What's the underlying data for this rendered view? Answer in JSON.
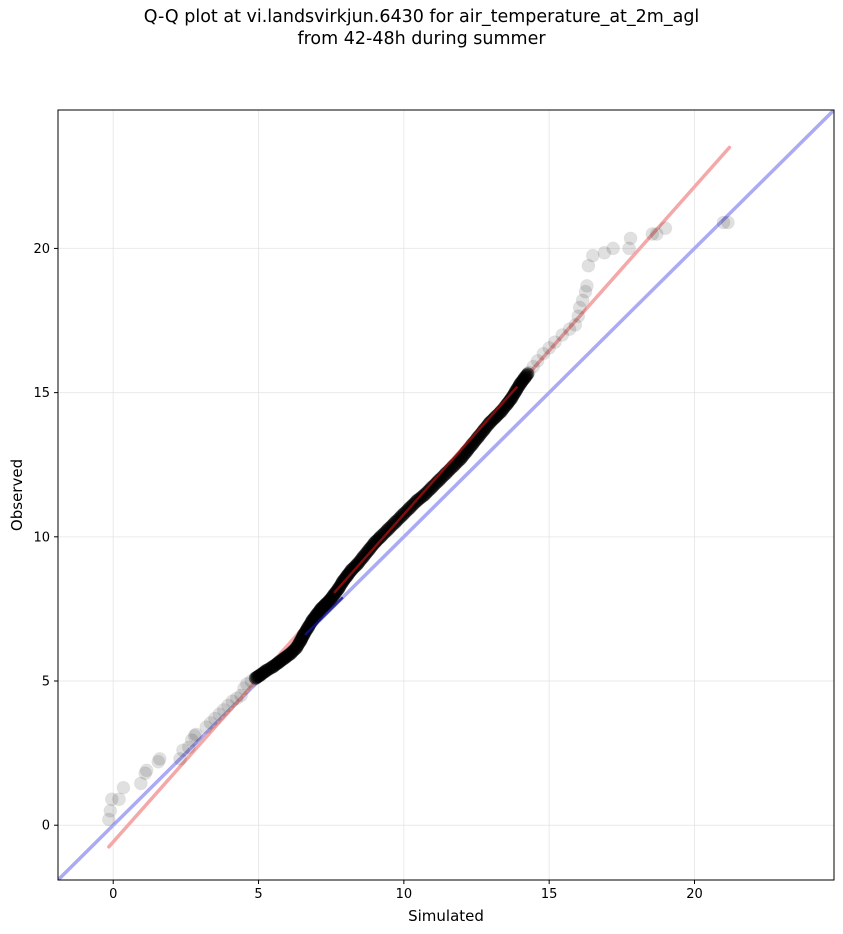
{
  "chart_data": {
    "type": "scatter",
    "title": "Q-Q plot at vi.landsvirkjun.6430 for air_temperature_at_2m_agl",
    "subtitle": "from 42-48h during summer",
    "xlabel": "Simulated",
    "ylabel": "Observed",
    "xlim": [
      -1.9,
      24.8
    ],
    "ylim": [
      -1.9,
      24.8
    ],
    "grid": true,
    "x_ticks": [
      0,
      5,
      10,
      15,
      20
    ],
    "y_ticks": [
      0,
      5,
      10,
      15,
      20
    ],
    "colors": {
      "reference_line": "#aaaaf5",
      "fit_line": "#f5a8a8",
      "points": "#000000",
      "fit_core": "#b41414",
      "ref_core": "#14148c"
    },
    "reference_line": {
      "x": [
        -1.9,
        24.8
      ],
      "y": [
        -1.9,
        24.8
      ]
    },
    "fit_line": {
      "x": [
        -0.15,
        21.2
      ],
      "y": [
        -0.75,
        23.5
      ]
    },
    "qq_points": [
      [
        -0.15,
        0.2
      ],
      [
        -0.1,
        0.5
      ],
      [
        -0.05,
        0.9
      ],
      [
        0.2,
        0.9
      ],
      [
        0.35,
        1.3
      ],
      [
        0.95,
        1.45
      ],
      [
        1.1,
        1.8
      ],
      [
        1.15,
        1.9
      ],
      [
        1.55,
        2.2
      ],
      [
        1.6,
        2.3
      ],
      [
        2.3,
        2.3
      ],
      [
        2.4,
        2.6
      ],
      [
        2.6,
        2.7
      ],
      [
        2.7,
        2.95
      ],
      [
        2.8,
        3.1
      ],
      [
        2.85,
        3.15
      ],
      [
        3.2,
        3.4
      ],
      [
        3.35,
        3.55
      ],
      [
        3.5,
        3.7
      ],
      [
        3.65,
        3.85
      ],
      [
        3.8,
        4.0
      ],
      [
        3.95,
        4.15
      ],
      [
        4.1,
        4.3
      ],
      [
        4.25,
        4.4
      ],
      [
        4.4,
        4.5
      ],
      [
        4.5,
        4.75
      ],
      [
        4.6,
        4.9
      ],
      [
        4.75,
        5.0
      ],
      [
        4.9,
        5.1
      ],
      [
        5.05,
        5.2
      ],
      [
        5.25,
        5.35
      ],
      [
        5.5,
        5.5
      ],
      [
        5.7,
        5.65
      ],
      [
        5.9,
        5.8
      ],
      [
        6.1,
        5.95
      ],
      [
        6.3,
        6.15
      ],
      [
        6.45,
        6.4
      ],
      [
        6.55,
        6.6
      ],
      [
        6.7,
        6.85
      ],
      [
        6.85,
        7.1
      ],
      [
        7.0,
        7.3
      ],
      [
        7.15,
        7.5
      ],
      [
        7.3,
        7.65
      ],
      [
        7.45,
        7.8
      ],
      [
        7.6,
        8.0
      ],
      [
        7.75,
        8.2
      ],
      [
        7.9,
        8.45
      ],
      [
        8.05,
        8.65
      ],
      [
        8.2,
        8.85
      ],
      [
        8.4,
        9.05
      ],
      [
        8.6,
        9.3
      ],
      [
        8.8,
        9.55
      ],
      [
        9.0,
        9.8
      ],
      [
        9.2,
        10.0
      ],
      [
        9.45,
        10.25
      ],
      [
        9.7,
        10.5
      ],
      [
        9.95,
        10.75
      ],
      [
        10.2,
        11.0
      ],
      [
        10.45,
        11.25
      ],
      [
        10.7,
        11.45
      ],
      [
        10.95,
        11.7
      ],
      [
        11.2,
        11.95
      ],
      [
        11.45,
        12.2
      ],
      [
        11.7,
        12.45
      ],
      [
        11.95,
        12.7
      ],
      [
        12.15,
        12.95
      ],
      [
        12.35,
        13.2
      ],
      [
        12.55,
        13.45
      ],
      [
        12.75,
        13.7
      ],
      [
        12.95,
        13.95
      ],
      [
        13.15,
        14.15
      ],
      [
        13.35,
        14.35
      ],
      [
        13.55,
        14.6
      ],
      [
        13.7,
        14.8
      ],
      [
        13.85,
        15.05
      ],
      [
        14.0,
        15.3
      ],
      [
        14.15,
        15.5
      ],
      [
        14.3,
        15.7
      ],
      [
        14.45,
        15.9
      ],
      [
        14.6,
        16.1
      ],
      [
        14.8,
        16.35
      ],
      [
        15.0,
        16.55
      ],
      [
        15.2,
        16.75
      ],
      [
        15.45,
        17.0
      ],
      [
        15.7,
        17.2
      ],
      [
        15.9,
        17.35
      ],
      [
        16.0,
        17.65
      ],
      [
        16.05,
        17.95
      ],
      [
        16.15,
        18.2
      ],
      [
        16.25,
        18.5
      ],
      [
        16.3,
        18.7
      ],
      [
        16.35,
        19.4
      ],
      [
        16.5,
        19.75
      ],
      [
        16.9,
        19.85
      ],
      [
        17.2,
        20.0
      ],
      [
        17.75,
        20.0
      ],
      [
        17.8,
        20.35
      ],
      [
        18.55,
        20.5
      ],
      [
        18.7,
        20.5
      ],
      [
        19.0,
        20.7
      ],
      [
        21.0,
        20.9
      ],
      [
        21.15,
        20.9
      ]
    ]
  }
}
